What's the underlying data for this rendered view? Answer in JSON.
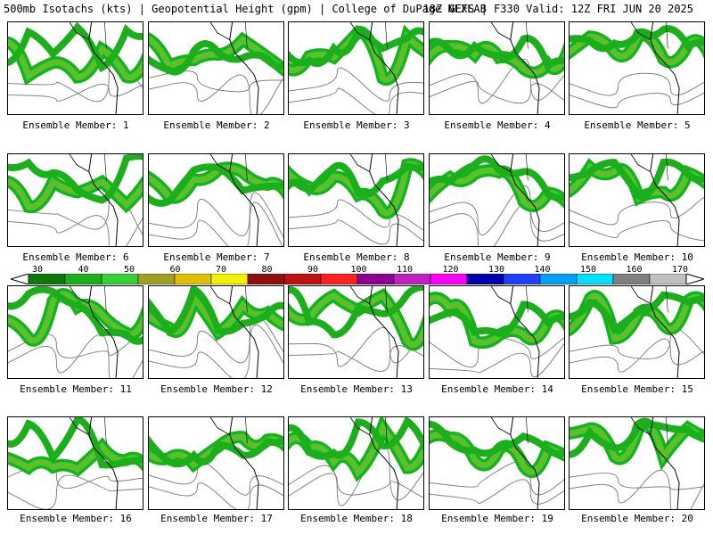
{
  "header": {
    "left": "500mb Isotachs (kts) | Geopotential Height (gpm) | College of DuPage NEXLAB",
    "right": "18Z GEFS | F330 Valid: 12Z FRI JUN 20 2025"
  },
  "members": [
    "Ensemble Member: 1",
    "Ensemble Member: 2",
    "Ensemble Member: 3",
    "Ensemble Member: 4",
    "Ensemble Member: 5",
    "Ensemble Member: 6",
    "Ensemble Member: 7",
    "Ensemble Member: 8",
    "Ensemble Member: 9",
    "Ensemble Member: 10",
    "Ensemble Member: 11",
    "Ensemble Member: 12",
    "Ensemble Member: 13",
    "Ensemble Member: 14",
    "Ensemble Member: 15",
    "Ensemble Member: 16",
    "Ensemble Member: 17",
    "Ensemble Member: 18",
    "Ensemble Member: 19",
    "Ensemble Member: 20"
  ],
  "colorbar": {
    "labels": [
      "30",
      "40",
      "50",
      "60",
      "70",
      "80",
      "90",
      "100",
      "110",
      "120",
      "130",
      "140",
      "150",
      "160",
      "170"
    ],
    "colors": [
      "#0a7a0a",
      "#1bb01b",
      "#34d234",
      "#a0a020",
      "#e0c000",
      "#f0f000",
      "#901010",
      "#c01010",
      "#ff2020",
      "#900090",
      "#c020c0",
      "#ff00ff",
      "#0000b0",
      "#2040ff",
      "#00a0ff",
      "#00e0ff",
      "#808080",
      "#c0c0c0"
    ]
  }
}
